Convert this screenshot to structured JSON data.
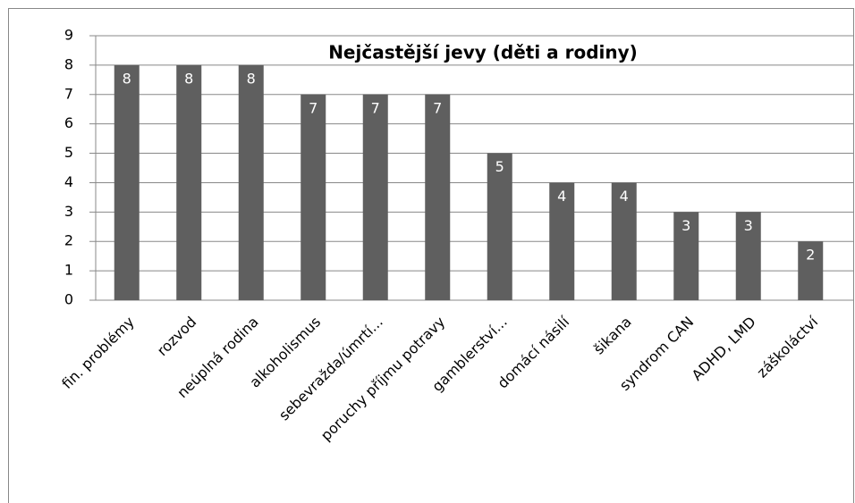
{
  "chart_data": {
    "type": "bar",
    "title": "Nejčastější jevy (děti a rodiny)",
    "categories": [
      "fin. problémy",
      "rozvod",
      "neúplná rodina",
      "alkoholismus",
      "sebevražda/úmrtí...",
      "poruchy příjmu potravy",
      "gamblerství...",
      "domácí násilí",
      "šikana",
      "syndrom CAN",
      "ADHD, LMD",
      "záškoláctví"
    ],
    "values": [
      8,
      8,
      8,
      7,
      7,
      7,
      5,
      4,
      4,
      3,
      3,
      2
    ],
    "color": "#5f5f5f",
    "ylim": [
      0,
      9
    ],
    "yticks": [
      0,
      1,
      2,
      3,
      4,
      5,
      6,
      7,
      8,
      9
    ],
    "grid": true,
    "data_labels": true
  }
}
